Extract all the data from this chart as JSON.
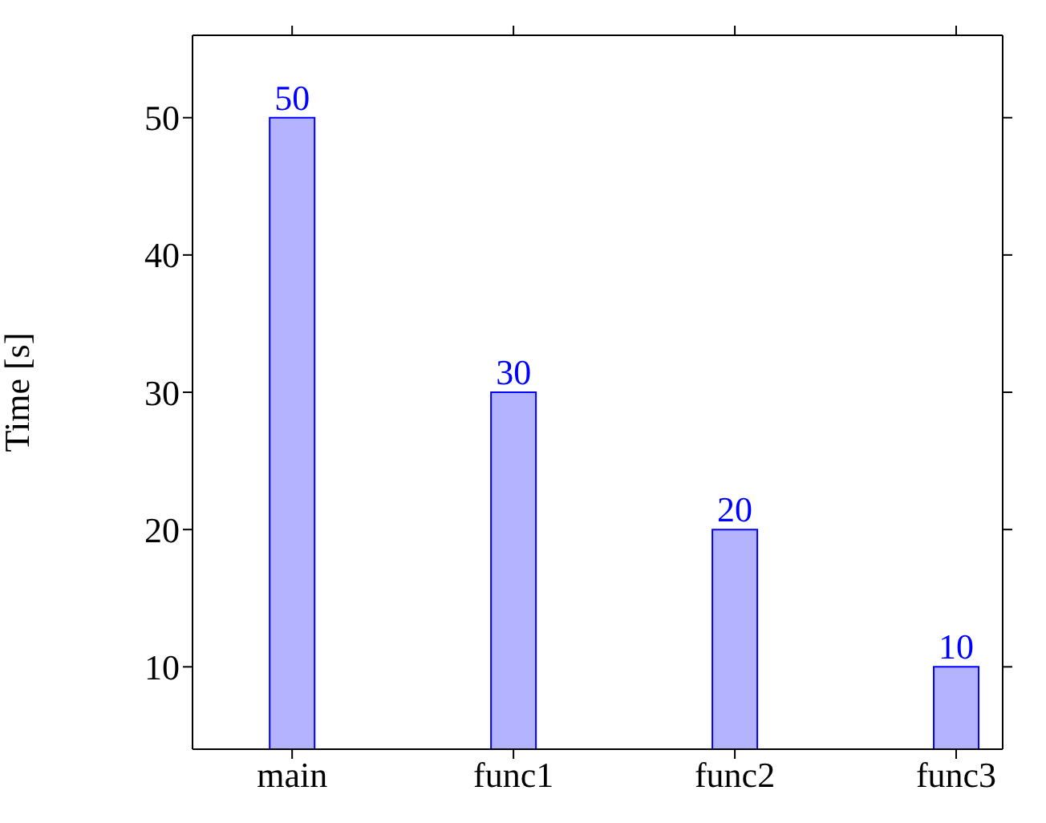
{
  "chart_data": {
    "type": "bar",
    "ylabel": "Time [s]",
    "categories": [
      "main",
      "func1",
      "func2",
      "func3"
    ],
    "values": [
      50,
      30,
      20,
      10
    ],
    "color": "#b3b3ff",
    "ylim": [
      4,
      56
    ],
    "yticks": [
      10,
      20,
      30,
      40,
      50
    ],
    "grid": false,
    "data_labels": true
  }
}
